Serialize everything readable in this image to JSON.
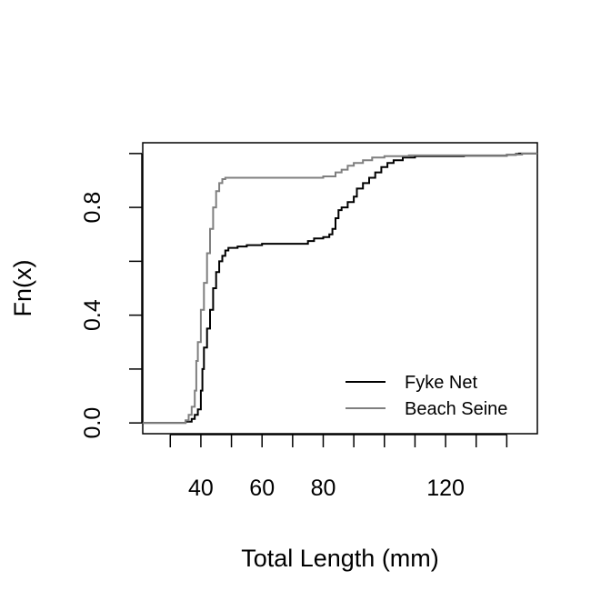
{
  "chart_data": {
    "type": "line",
    "title": "",
    "xlabel": "Total Length (mm)",
    "ylabel": "Fn(x)",
    "xlim": [
      21,
      150
    ],
    "ylim": [
      -0.04,
      1.04
    ],
    "x_ticks": [
      30,
      40,
      50,
      60,
      70,
      80,
      90,
      100,
      110,
      120,
      130,
      140
    ],
    "x_tick_labels": [
      {
        "value": 40,
        "label": "40"
      },
      {
        "value": 60,
        "label": "60"
      },
      {
        "value": 80,
        "label": "80"
      },
      {
        "value": 120,
        "label": "120"
      }
    ],
    "y_ticks": [
      0.0,
      0.2,
      0.4,
      0.6,
      0.8,
      1.0
    ],
    "y_tick_labels": [
      {
        "value": 0.0,
        "label": "0.0"
      },
      {
        "value": 0.4,
        "label": "0.4"
      },
      {
        "value": 0.8,
        "label": "0.8"
      }
    ],
    "grid": false,
    "legend_position": "bottom-right",
    "series": [
      {
        "name": "Fyke Net",
        "color": "#000000",
        "points": [
          [
            21,
            0.0
          ],
          [
            34,
            0.0
          ],
          [
            35,
            0.005
          ],
          [
            37,
            0.015
          ],
          [
            38,
            0.03
          ],
          [
            39,
            0.05
          ],
          [
            40,
            0.12
          ],
          [
            40.5,
            0.2
          ],
          [
            41,
            0.28
          ],
          [
            42,
            0.35
          ],
          [
            43,
            0.42
          ],
          [
            44,
            0.5
          ],
          [
            45,
            0.56
          ],
          [
            46,
            0.6
          ],
          [
            47,
            0.62
          ],
          [
            48,
            0.64
          ],
          [
            49,
            0.65
          ],
          [
            52,
            0.655
          ],
          [
            55,
            0.66
          ],
          [
            60,
            0.665
          ],
          [
            75,
            0.675
          ],
          [
            77,
            0.685
          ],
          [
            80,
            0.69
          ],
          [
            82,
            0.7
          ],
          [
            83,
            0.72
          ],
          [
            84,
            0.76
          ],
          [
            85,
            0.79
          ],
          [
            86,
            0.8
          ],
          [
            88,
            0.82
          ],
          [
            90,
            0.84
          ],
          [
            91,
            0.87
          ],
          [
            93,
            0.89
          ],
          [
            95,
            0.91
          ],
          [
            97,
            0.93
          ],
          [
            99,
            0.95
          ],
          [
            101,
            0.965
          ],
          [
            103,
            0.975
          ],
          [
            106,
            0.985
          ],
          [
            110,
            0.99
          ],
          [
            126,
            0.992
          ],
          [
            140,
            0.995
          ],
          [
            143,
            0.998
          ],
          [
            144,
            1.0
          ],
          [
            150,
            1.0
          ]
        ]
      },
      {
        "name": "Beach Seine",
        "color": "#7f7f7f",
        "points": [
          [
            21,
            0.0
          ],
          [
            34,
            0.0
          ],
          [
            35,
            0.01
          ],
          [
            36,
            0.03
          ],
          [
            37,
            0.06
          ],
          [
            38,
            0.12
          ],
          [
            38.5,
            0.23
          ],
          [
            39,
            0.3
          ],
          [
            40,
            0.42
          ],
          [
            41,
            0.52
          ],
          [
            42,
            0.63
          ],
          [
            43,
            0.72
          ],
          [
            44,
            0.8
          ],
          [
            45,
            0.86
          ],
          [
            46,
            0.89
          ],
          [
            47,
            0.905
          ],
          [
            48,
            0.91
          ],
          [
            78,
            0.91
          ],
          [
            80,
            0.915
          ],
          [
            84,
            0.93
          ],
          [
            86,
            0.94
          ],
          [
            88,
            0.955
          ],
          [
            90,
            0.965
          ],
          [
            93,
            0.975
          ],
          [
            96,
            0.985
          ],
          [
            100,
            0.99
          ],
          [
            108,
            0.993
          ],
          [
            140,
            0.996
          ],
          [
            145,
            1.0
          ],
          [
            150,
            1.0
          ]
        ]
      }
    ]
  }
}
